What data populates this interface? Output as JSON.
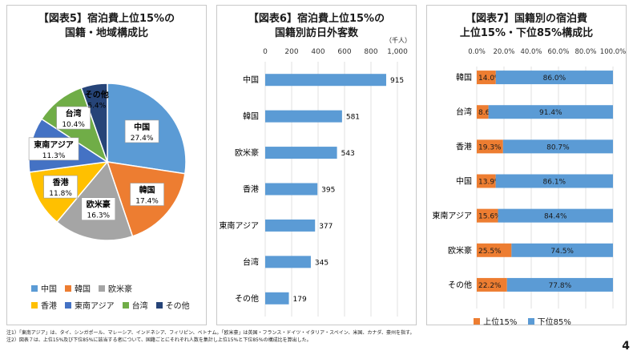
{
  "chart_data": [
    {
      "type": "pie",
      "title_lines": [
        "【図表5】宿泊費上位15%の",
        "国籍・地域構成比"
      ],
      "categories": [
        "中国",
        "韓国",
        "欧米豪",
        "香港",
        "東南アジア",
        "台湾",
        "その他"
      ],
      "values": [
        27.4,
        17.4,
        16.3,
        11.8,
        11.3,
        10.4,
        5.4
      ],
      "value_labels": [
        "27.4%",
        "17.4%",
        "16.3%",
        "11.8%",
        "11.3%",
        "10.4%",
        "5.4%"
      ],
      "colors": [
        "#5b9bd5",
        "#ed7d31",
        "#a5a5a5",
        "#ffc000",
        "#4472c4",
        "#70ad47",
        "#264478"
      ],
      "legend": [
        "中国",
        "韓国",
        "欧米豪",
        "香港",
        "東南アジア",
        "台湾",
        "その他"
      ],
      "legend_placement": "bottom"
    },
    {
      "type": "bar",
      "orientation": "horizontal",
      "title_lines": [
        "【図表6】宿泊費上位15%の",
        "国籍別訪日外客数"
      ],
      "unit": "（千人）",
      "categories": [
        "中国",
        "韓国",
        "欧米豪",
        "香港",
        "東南アジア",
        "台湾",
        "その他"
      ],
      "values": [
        915,
        581,
        543,
        395,
        377,
        345,
        179
      ],
      "xlim": [
        0,
        1000
      ],
      "xticks": [
        "0",
        "200",
        "400",
        "600",
        "800",
        "1,000"
      ],
      "xtick_values": [
        0,
        200,
        400,
        600,
        800,
        1000
      ],
      "color": "#5b9bd5",
      "grid": true
    },
    {
      "type": "bar",
      "orientation": "horizontal",
      "stacked": true,
      "title_lines": [
        "【図表7】国籍別の宿泊費",
        "上位15%・下位85%構成比"
      ],
      "categories": [
        "韓国",
        "台湾",
        "香港",
        "中国",
        "東南アジア",
        "欧米豪",
        "その他"
      ],
      "series": [
        {
          "name": "上位15%",
          "values": [
            14.0,
            8.6,
            19.3,
            13.9,
            15.6,
            25.5,
            22.2
          ],
          "labels": [
            "14.0%",
            "8.6%",
            "19.3%",
            "13.9%",
            "15.6%",
            "25.5%",
            "22.2%"
          ],
          "color": "#ed7d31"
        },
        {
          "name": "下位85%",
          "values": [
            86.0,
            91.4,
            80.7,
            86.1,
            84.4,
            74.5,
            77.8
          ],
          "labels": [
            "86.0%",
            "91.4%",
            "80.7%",
            "86.1%",
            "84.4%",
            "74.5%",
            "77.8%"
          ],
          "color": "#5b9bd5"
        }
      ],
      "xlim": [
        0,
        100
      ],
      "xticks": [
        "0.0%",
        "20.0%",
        "40.0%",
        "60.0%",
        "80.0%",
        "100.0%"
      ],
      "xtick_values": [
        0,
        20,
        40,
        60,
        80,
        100
      ],
      "legend_placement": "bottom",
      "grid": true
    }
  ],
  "notes": [
    "注1）「東南アジア」は、タイ、シンガポール、マレーシア、インドネシア、フィリピン、ベトナム。「欧米豪」は英国・フランス・ドイツ・イタリア・スペイン、米国、カナダ、豪州を指す。",
    "注2）図表７は、上位15%及び下位85%に該当する者について、国籍ごとにそれぞれ人数を集計し上位15%と下位85%の構成比を算出した。"
  ],
  "page_number": "4"
}
